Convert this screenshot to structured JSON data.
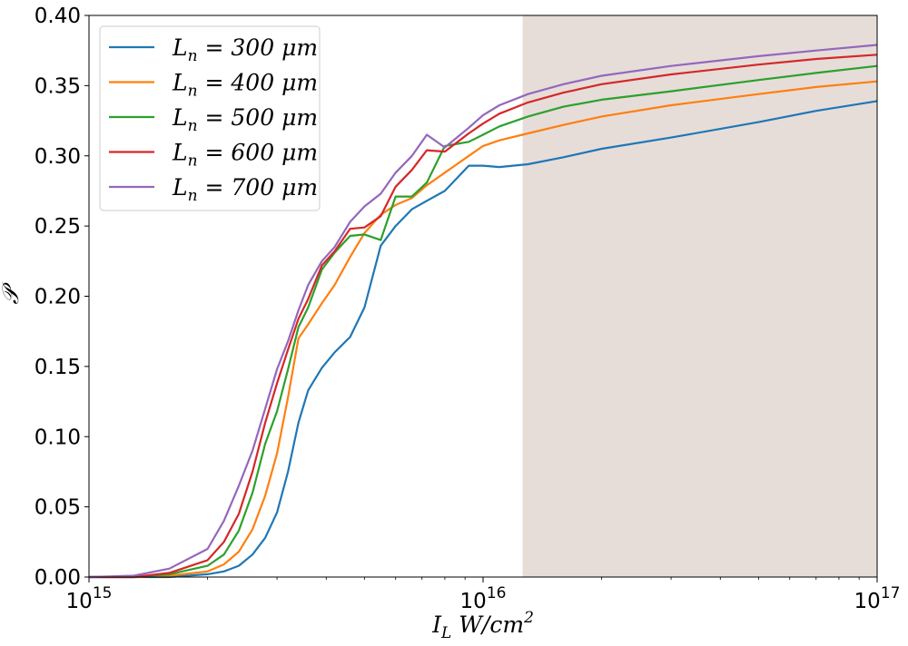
{
  "chart_data": {
    "type": "line",
    "xscale": "log",
    "xlim": [
      1000000000000000.0,
      1e+17
    ],
    "ylim": [
      0.0,
      0.4
    ],
    "xlabel": "I_L W/cm^2",
    "ylabel": "𝒫",
    "xticks": [
      {
        "value": 1000000000000000.0,
        "base": "10",
        "exp": "15"
      },
      {
        "value": 1e+16,
        "base": "10",
        "exp": "16"
      },
      {
        "value": 1e+17,
        "base": "10",
        "exp": "17"
      }
    ],
    "yticks": [
      "0.00",
      "0.05",
      "0.10",
      "0.15",
      "0.20",
      "0.25",
      "0.30",
      "0.35",
      "0.40"
    ],
    "legend_position": "top-left",
    "shaded_band": {
      "color": "#e6ddd9",
      "from_x": 1.26e+16,
      "to_x": 1e+17,
      "y_low": 0.0,
      "y_high": 0.4
    },
    "x": [
      1000000000000000.0,
      1300000000000000.0,
      1600000000000000.0,
      2000000000000000.0,
      2200000000000000.0,
      2400000000000000.0,
      2600000000000000.0,
      2800000000000000.0,
      3000000000000000.0,
      3200000000000000.0,
      3400000000000000.0,
      3600000000000000.0,
      3900000000000000.0,
      4200000000000000.0,
      4600000000000000.0,
      5000000000000000.0,
      5500000000000000.0,
      6000000000000000.0,
      6600000000000000.0,
      7200000000000000.0,
      8000000000000000.0,
      9200000000000000.0,
      1e+16,
      1.1e+16,
      1.3e+16,
      1.6e+16,
      2e+16,
      3e+16,
      5e+16,
      7e+16,
      1e+17
    ],
    "series": [
      {
        "name": "L_n = 300 μm",
        "color": "#1f77b4",
        "values": [
          0.0,
          0.0,
          0.0,
          0.002,
          0.004,
          0.008,
          0.016,
          0.028,
          0.046,
          0.075,
          0.11,
          0.133,
          0.149,
          0.16,
          0.171,
          0.192,
          0.236,
          0.25,
          0.262,
          0.268,
          0.275,
          0.293,
          0.293,
          0.292,
          0.294,
          0.299,
          0.305,
          0.313,
          0.324,
          0.332,
          0.339
        ]
      },
      {
        "name": "L_n = 400 μm",
        "color": "#ff7f0e",
        "values": [
          0.0,
          0.0,
          0.001,
          0.004,
          0.009,
          0.018,
          0.034,
          0.058,
          0.088,
          0.128,
          0.17,
          0.18,
          0.195,
          0.208,
          0.228,
          0.245,
          0.258,
          0.265,
          0.27,
          0.279,
          0.288,
          0.3,
          0.307,
          0.311,
          0.316,
          0.322,
          0.328,
          0.336,
          0.344,
          0.349,
          0.353
        ]
      },
      {
        "name": "L_n = 500 μm",
        "color": "#2ca02c",
        "values": [
          0.0,
          0.0,
          0.002,
          0.008,
          0.016,
          0.033,
          0.06,
          0.095,
          0.118,
          0.148,
          0.178,
          0.192,
          0.219,
          0.231,
          0.243,
          0.244,
          0.24,
          0.271,
          0.271,
          0.281,
          0.307,
          0.31,
          0.315,
          0.321,
          0.328,
          0.335,
          0.34,
          0.346,
          0.354,
          0.359,
          0.364
        ]
      },
      {
        "name": "L_n = 600 μm",
        "color": "#d62728",
        "values": [
          0.0,
          0.0,
          0.003,
          0.012,
          0.025,
          0.045,
          0.075,
          0.11,
          0.138,
          0.162,
          0.184,
          0.198,
          0.222,
          0.232,
          0.248,
          0.249,
          0.257,
          0.278,
          0.29,
          0.304,
          0.303,
          0.316,
          0.323,
          0.33,
          0.338,
          0.345,
          0.351,
          0.358,
          0.365,
          0.369,
          0.372
        ]
      },
      {
        "name": "L_n = 700 μm",
        "color": "#9467bd",
        "values": [
          0.0,
          0.001,
          0.006,
          0.02,
          0.04,
          0.065,
          0.09,
          0.12,
          0.148,
          0.168,
          0.19,
          0.208,
          0.225,
          0.235,
          0.253,
          0.264,
          0.273,
          0.288,
          0.3,
          0.315,
          0.306,
          0.32,
          0.329,
          0.336,
          0.344,
          0.351,
          0.357,
          0.364,
          0.371,
          0.375,
          0.379
        ]
      }
    ]
  }
}
